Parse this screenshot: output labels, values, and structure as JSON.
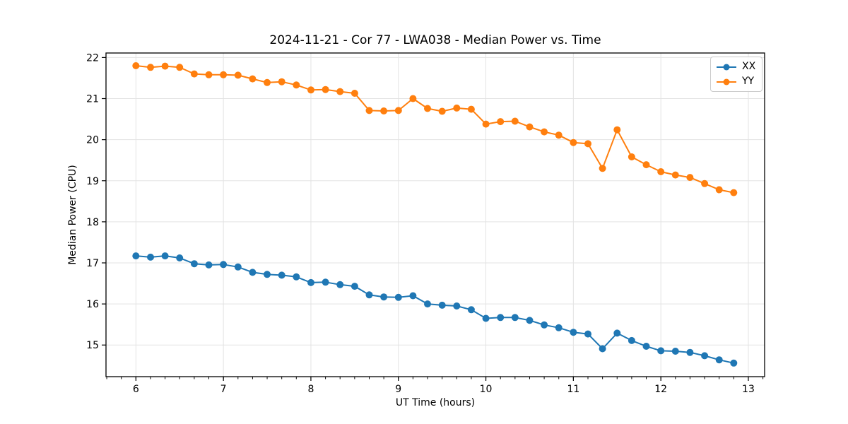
{
  "figure": {
    "title": "2024-11-21 - Cor 77 - LWA038 - Median Power vs. Time"
  },
  "chart_data": {
    "type": "line",
    "title": "2024-11-21 - Cor 77 - LWA038 - Median Power vs. Time",
    "xlabel": "UT Time (hours)",
    "ylabel": "Median Power (CPU)",
    "xlim": [
      5.658,
      13.186
    ],
    "ylim": [
      14.23,
      22.11
    ],
    "x_ticks": [
      6,
      7,
      8,
      9,
      10,
      11,
      12,
      13
    ],
    "y_ticks": [
      15,
      16,
      17,
      18,
      19,
      20,
      21,
      22
    ],
    "x_minor_step": 0.1666667,
    "grid": true,
    "grid_color": "#e3e3e3",
    "legend_position": "upper right",
    "marker": "circle",
    "x": [
      6.0,
      6.167,
      6.333,
      6.5,
      6.667,
      6.833,
      7.0,
      7.167,
      7.333,
      7.5,
      7.667,
      7.833,
      8.0,
      8.167,
      8.333,
      8.5,
      8.667,
      8.833,
      9.0,
      9.167,
      9.333,
      9.5,
      9.667,
      9.833,
      10.0,
      10.167,
      10.333,
      10.5,
      10.667,
      10.833,
      11.0,
      11.167,
      11.333,
      11.5,
      11.667,
      11.833,
      12.0,
      12.167,
      12.333,
      12.5,
      12.667,
      12.833
    ],
    "series": [
      {
        "name": "XX",
        "color": "#1f77b4",
        "values": [
          17.17,
          17.14,
          17.17,
          17.12,
          16.98,
          16.95,
          16.96,
          16.9,
          16.77,
          16.72,
          16.7,
          16.66,
          16.52,
          16.53,
          16.47,
          16.43,
          16.22,
          16.17,
          16.16,
          16.2,
          16.0,
          15.97,
          15.95,
          15.86,
          15.65,
          15.67,
          15.67,
          15.6,
          15.49,
          15.42,
          15.31,
          15.27,
          14.91,
          15.29,
          15.11,
          14.97,
          14.86,
          14.85,
          14.82,
          14.74,
          14.64,
          14.56
        ]
      },
      {
        "name": "YY",
        "color": "#ff7f0e",
        "values": [
          21.8,
          21.76,
          21.79,
          21.76,
          21.6,
          21.58,
          21.58,
          21.57,
          21.48,
          21.39,
          21.41,
          21.33,
          21.21,
          21.22,
          21.17,
          21.13,
          20.71,
          20.7,
          20.71,
          21.0,
          20.76,
          20.69,
          20.77,
          20.74,
          20.38,
          20.44,
          20.45,
          20.31,
          20.19,
          20.11,
          19.93,
          19.9,
          19.3,
          20.24,
          19.58,
          19.39,
          19.22,
          19.14,
          19.08,
          18.93,
          18.78,
          18.71
        ]
      }
    ]
  },
  "colors": {
    "background": "#ffffff",
    "spine": "#000000",
    "tick": "#000000",
    "text": "#000000",
    "grid": "#e3e3e3",
    "legend_border": "#cccccc"
  }
}
